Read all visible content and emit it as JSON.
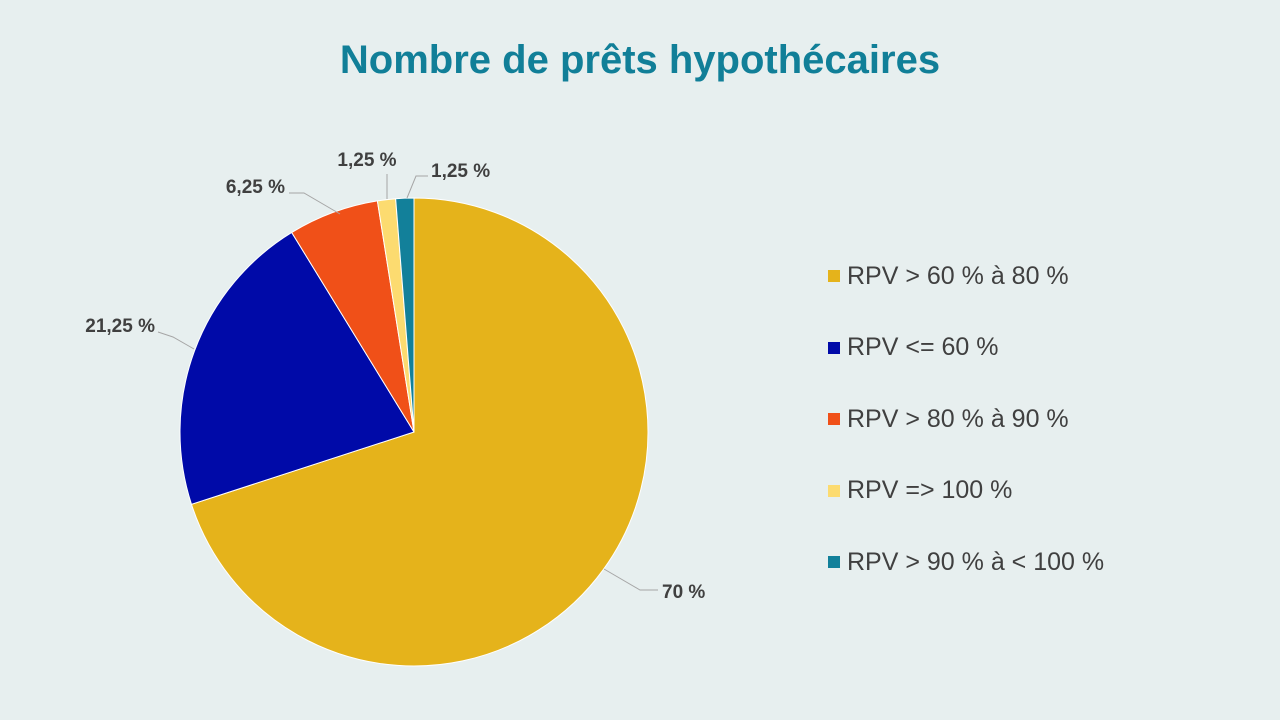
{
  "chart_data": {
    "type": "pie",
    "title": "Nombre de prêts hypothécaires",
    "slices": [
      {
        "label": "RPV > 60 % à 80 %",
        "value": 70,
        "value_label": "70 %",
        "color": "#e5b31b"
      },
      {
        "label": "RPV <= 60 %",
        "value": 21.25,
        "value_label": "21,25 %",
        "color": "#000aa8"
      },
      {
        "label": "RPV > 80 % à 90 %",
        "value": 6.25,
        "value_label": "6,25 %",
        "color": "#f05018"
      },
      {
        "label": "RPV => 100 %",
        "value": 1.25,
        "value_label": "1,25 %",
        "color": "#fcdb70"
      },
      {
        "label": "RPV > 90 % à < 100 %",
        "value": 1.25,
        "value_label": "1,25 %",
        "color": "#12809a"
      }
    ],
    "legend_position": "right",
    "start_angle": "12 o'clock",
    "direction": "clockwise"
  }
}
